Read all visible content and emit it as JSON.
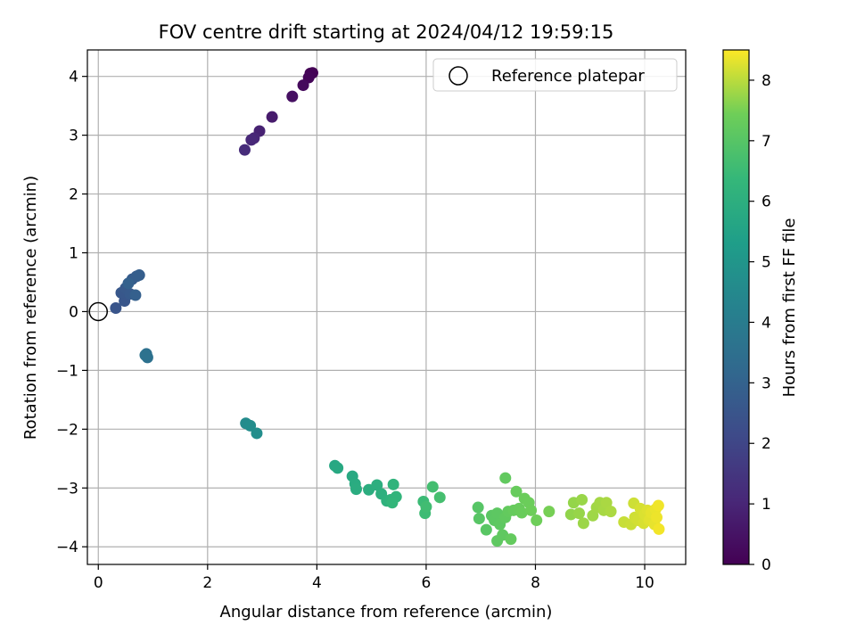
{
  "chart_data": {
    "type": "scatter",
    "title": "FOV centre drift starting at 2024/04/12 19:59:15",
    "xlabel": "Angular distance from reference (arcmin)",
    "ylabel": "Rotation from reference (arcmin)",
    "xlim": [
      -0.2,
      10.75
    ],
    "ylim": [
      -4.3,
      4.45
    ],
    "xticks": [
      0,
      2,
      4,
      6,
      8,
      10
    ],
    "yticks": [
      -4,
      -3,
      -2,
      -1,
      0,
      1,
      2,
      3,
      4
    ],
    "grid": true,
    "legend": {
      "position": "top-right",
      "entries": [
        "Reference platepar"
      ]
    },
    "colorbar": {
      "label": "Hours from first FF file",
      "range": [
        0,
        8.5
      ],
      "ticks": [
        0,
        1,
        2,
        3,
        4,
        5,
        6,
        7,
        8
      ],
      "colormap": "viridis"
    },
    "reference_point": {
      "label": "Reference platepar",
      "x": 0,
      "y": 0
    },
    "series": [
      {
        "points": [
          {
            "x": 3.92,
            "y": 4.06,
            "t": 0.0
          },
          {
            "x": 3.88,
            "y": 4.05,
            "t": 0.05
          },
          {
            "x": 3.85,
            "y": 3.98,
            "t": 0.12
          },
          {
            "x": 3.75,
            "y": 3.85,
            "t": 0.25
          },
          {
            "x": 3.55,
            "y": 3.66,
            "t": 0.4
          },
          {
            "x": 3.18,
            "y": 3.31,
            "t": 0.7
          },
          {
            "x": 2.95,
            "y": 3.07,
            "t": 0.9
          },
          {
            "x": 2.85,
            "y": 2.95,
            "t": 1.0
          },
          {
            "x": 2.8,
            "y": 2.92,
            "t": 1.05
          },
          {
            "x": 2.68,
            "y": 2.75,
            "t": 1.2
          },
          {
            "x": 0.32,
            "y": 0.06,
            "t": 2.5
          },
          {
            "x": 0.48,
            "y": 0.18,
            "t": 2.55
          },
          {
            "x": 0.42,
            "y": 0.32,
            "t": 2.6
          },
          {
            "x": 0.5,
            "y": 0.4,
            "t": 2.65
          },
          {
            "x": 0.58,
            "y": 0.3,
            "t": 2.7
          },
          {
            "x": 0.62,
            "y": 0.55,
            "t": 2.75
          },
          {
            "x": 0.7,
            "y": 0.6,
            "t": 2.8
          },
          {
            "x": 0.75,
            "y": 0.62,
            "t": 2.85
          },
          {
            "x": 0.68,
            "y": 0.28,
            "t": 2.9
          },
          {
            "x": 0.55,
            "y": 0.48,
            "t": 2.95
          },
          {
            "x": 0.88,
            "y": -0.72,
            "t": 3.5
          },
          {
            "x": 0.9,
            "y": -0.78,
            "t": 3.55
          },
          {
            "x": 0.86,
            "y": -0.74,
            "t": 3.6
          },
          {
            "x": 2.7,
            "y": -1.9,
            "t": 4.6
          },
          {
            "x": 2.78,
            "y": -1.94,
            "t": 4.65
          },
          {
            "x": 2.9,
            "y": -2.07,
            "t": 4.7
          },
          {
            "x": 4.33,
            "y": -2.62,
            "t": 5.7
          },
          {
            "x": 4.38,
            "y": -2.66,
            "t": 5.75
          },
          {
            "x": 4.65,
            "y": -2.8,
            "t": 5.8
          },
          {
            "x": 4.7,
            "y": -2.93,
            "t": 5.85
          },
          {
            "x": 4.72,
            "y": -3.02,
            "t": 5.9
          },
          {
            "x": 4.95,
            "y": -3.03,
            "t": 5.95
          },
          {
            "x": 5.1,
            "y": -2.95,
            "t": 6.0
          },
          {
            "x": 5.18,
            "y": -3.1,
            "t": 6.05
          },
          {
            "x": 5.28,
            "y": -3.22,
            "t": 6.1
          },
          {
            "x": 5.35,
            "y": -3.2,
            "t": 6.15
          },
          {
            "x": 5.4,
            "y": -2.94,
            "t": 6.2
          },
          {
            "x": 5.45,
            "y": -3.15,
            "t": 6.25
          },
          {
            "x": 5.38,
            "y": -3.25,
            "t": 6.28
          },
          {
            "x": 5.95,
            "y": -3.23,
            "t": 6.5
          },
          {
            "x": 5.98,
            "y": -3.43,
            "t": 6.55
          },
          {
            "x": 6.0,
            "y": -3.32,
            "t": 6.6
          },
          {
            "x": 6.12,
            "y": -2.98,
            "t": 6.65
          },
          {
            "x": 6.25,
            "y": -3.16,
            "t": 6.7
          },
          {
            "x": 6.95,
            "y": -3.33,
            "t": 7.0
          },
          {
            "x": 6.97,
            "y": -3.52,
            "t": 7.02
          },
          {
            "x": 7.1,
            "y": -3.71,
            "t": 7.05
          },
          {
            "x": 7.2,
            "y": -3.47,
            "t": 7.08
          },
          {
            "x": 7.25,
            "y": -3.55,
            "t": 7.1
          },
          {
            "x": 7.3,
            "y": -3.43,
            "t": 7.12
          },
          {
            "x": 7.35,
            "y": -3.62,
            "t": 7.14
          },
          {
            "x": 7.3,
            "y": -3.9,
            "t": 7.16
          },
          {
            "x": 7.4,
            "y": -3.8,
            "t": 7.18
          },
          {
            "x": 7.45,
            "y": -3.5,
            "t": 7.2
          },
          {
            "x": 7.45,
            "y": -2.83,
            "t": 7.22
          },
          {
            "x": 7.5,
            "y": -3.4,
            "t": 7.24
          },
          {
            "x": 7.55,
            "y": -3.87,
            "t": 7.26
          },
          {
            "x": 7.6,
            "y": -3.38,
            "t": 7.28
          },
          {
            "x": 7.65,
            "y": -3.06,
            "t": 7.3
          },
          {
            "x": 7.7,
            "y": -3.35,
            "t": 7.32
          },
          {
            "x": 7.75,
            "y": -3.42,
            "t": 7.34
          },
          {
            "x": 7.8,
            "y": -3.18,
            "t": 7.36
          },
          {
            "x": 7.88,
            "y": -3.25,
            "t": 7.38
          },
          {
            "x": 7.92,
            "y": -3.38,
            "t": 7.4
          },
          {
            "x": 8.02,
            "y": -3.55,
            "t": 7.42
          },
          {
            "x": 8.25,
            "y": -3.4,
            "t": 7.5
          },
          {
            "x": 8.65,
            "y": -3.45,
            "t": 7.7
          },
          {
            "x": 8.7,
            "y": -3.25,
            "t": 7.72
          },
          {
            "x": 8.8,
            "y": -3.43,
            "t": 7.74
          },
          {
            "x": 8.85,
            "y": -3.2,
            "t": 7.76
          },
          {
            "x": 8.88,
            "y": -3.6,
            "t": 7.78
          },
          {
            "x": 9.05,
            "y": -3.47,
            "t": 7.8
          },
          {
            "x": 9.12,
            "y": -3.33,
            "t": 7.82
          },
          {
            "x": 9.18,
            "y": -3.25,
            "t": 7.84
          },
          {
            "x": 9.25,
            "y": -3.38,
            "t": 7.86
          },
          {
            "x": 9.3,
            "y": -3.25,
            "t": 7.88
          },
          {
            "x": 9.38,
            "y": -3.4,
            "t": 7.9
          },
          {
            "x": 9.62,
            "y": -3.58,
            "t": 8.1
          },
          {
            "x": 9.75,
            "y": -3.62,
            "t": 8.12
          },
          {
            "x": 9.8,
            "y": -3.26,
            "t": 8.14
          },
          {
            "x": 9.82,
            "y": -3.5,
            "t": 8.16
          },
          {
            "x": 9.88,
            "y": -3.55,
            "t": 8.18
          },
          {
            "x": 9.92,
            "y": -3.35,
            "t": 8.2
          },
          {
            "x": 9.98,
            "y": -3.6,
            "t": 8.22
          },
          {
            "x": 10.0,
            "y": -3.45,
            "t": 8.24
          },
          {
            "x": 10.05,
            "y": -3.38,
            "t": 8.26
          },
          {
            "x": 10.08,
            "y": -3.55,
            "t": 8.28
          },
          {
            "x": 10.1,
            "y": -3.52,
            "t": 8.3
          },
          {
            "x": 10.12,
            "y": -3.42,
            "t": 8.32
          },
          {
            "x": 10.18,
            "y": -3.62,
            "t": 8.34
          },
          {
            "x": 10.2,
            "y": -3.36,
            "t": 8.36
          },
          {
            "x": 10.22,
            "y": -3.5,
            "t": 8.38
          },
          {
            "x": 10.25,
            "y": -3.3,
            "t": 8.4
          },
          {
            "x": 10.26,
            "y": -3.7,
            "t": 8.42
          }
        ]
      }
    ]
  }
}
